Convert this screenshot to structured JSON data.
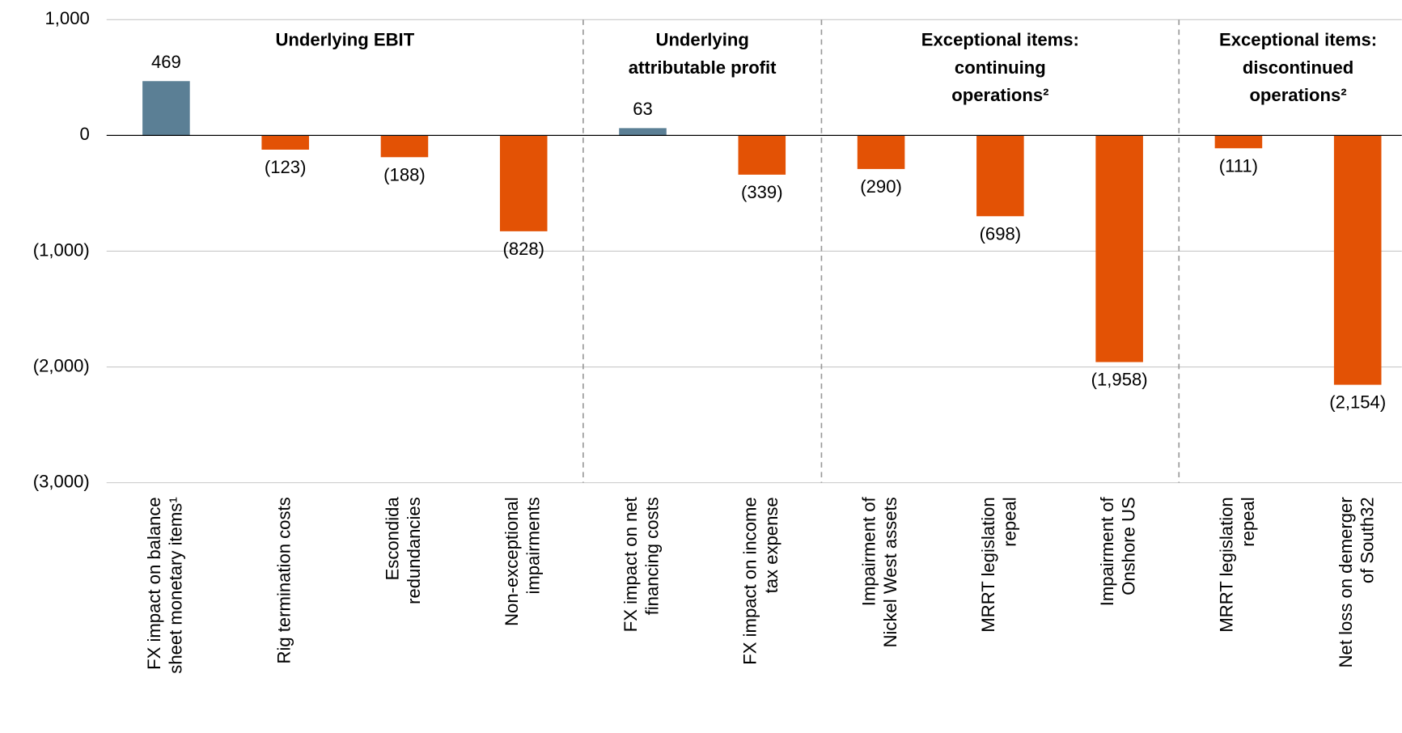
{
  "chart_data": {
    "type": "bar",
    "categories": [
      [
        "FX impact on balance",
        "sheet monetary items¹"
      ],
      [
        "Rig termination costs"
      ],
      [
        "Escondida",
        "redundancies"
      ],
      [
        "Non-exceptional",
        "impairments"
      ],
      [
        "FX impact on net",
        "financing costs"
      ],
      [
        "FX impact on income",
        "tax expense"
      ],
      [
        "Impairment of",
        "Nickel West assets"
      ],
      [
        "MRRT legislation",
        "repeal"
      ],
      [
        "Impairment of",
        "Onshore US"
      ],
      [
        "MRRT legislation",
        "repeal"
      ],
      [
        "Net loss on demerger",
        "of South32"
      ]
    ],
    "values": [
      469,
      -123,
      -188,
      -828,
      63,
      -339,
      -290,
      -698,
      -1958,
      -111,
      -2154
    ],
    "value_labels": [
      "469",
      "(123)",
      "(188)",
      "(828)",
      "63",
      "(339)",
      "(290)",
      "(698)",
      "(1,958)",
      "(111)",
      "(2,154)"
    ],
    "colors": [
      "#5b7f95",
      "#e35205",
      "#e35205",
      "#e35205",
      "#5b7f95",
      "#e35205",
      "#e35205",
      "#e35205",
      "#e35205",
      "#e35205",
      "#e35205"
    ],
    "groups": [
      {
        "label": [
          "Underlying EBIT"
        ],
        "members": [
          0,
          1,
          2,
          3
        ]
      },
      {
        "label": [
          "Underlying",
          "attributable profit"
        ],
        "members": [
          4,
          5
        ]
      },
      {
        "label": [
          "Exceptional items:",
          "continuing",
          "operations²"
        ],
        "members": [
          6,
          7,
          8
        ]
      },
      {
        "label": [
          "Exceptional items:",
          "discontinued",
          "operations²"
        ],
        "members": [
          9,
          10
        ]
      }
    ],
    "ylim": [
      -3000,
      1000
    ],
    "yticks": [
      {
        "value": 1000,
        "label": "1,000"
      },
      0,
      {
        "value": -1000,
        "label": "(1,000)"
      },
      {
        "value": -2000,
        "label": "(2,000)"
      },
      {
        "value": -3000,
        "label": "(3,000)"
      }
    ],
    "grid": true
  }
}
